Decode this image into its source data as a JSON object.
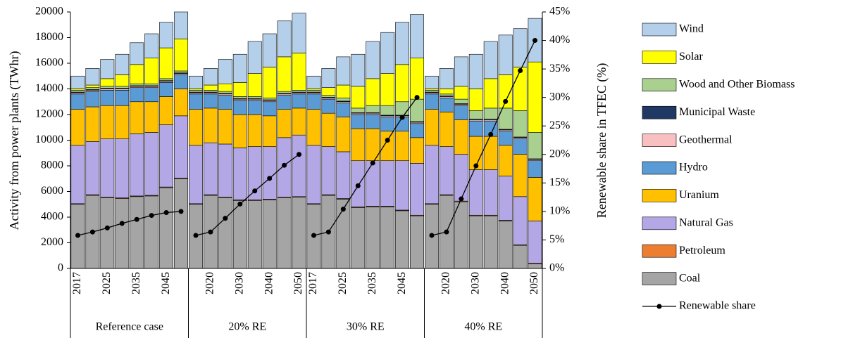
{
  "chart_data": {
    "type": "stacked-bar-line",
    "y_label": "Activity from power plants (TWhr)",
    "y2_label": "Renewable share in TFEC (%)",
    "ylim": [
      0,
      20000
    ],
    "yticks": [
      0,
      2000,
      4000,
      6000,
      8000,
      10000,
      12000,
      14000,
      16000,
      18000,
      20000
    ],
    "y2lim": [
      0,
      45
    ],
    "y2ticks": [
      {
        "value": 0,
        "label": "0%"
      },
      {
        "value": 5,
        "label": "5%"
      },
      {
        "value": 10,
        "label": "10%"
      },
      {
        "value": 15,
        "label": "15%"
      },
      {
        "value": 20,
        "label": "20%"
      },
      {
        "value": 25,
        "label": "25%"
      },
      {
        "value": 30,
        "label": "30%"
      },
      {
        "value": 35,
        "label": "35%"
      },
      {
        "value": 40,
        "label": "40%"
      },
      {
        "value": 45,
        "label": "45%"
      }
    ],
    "groups": [
      "Reference case",
      "20% RE",
      "30% RE",
      "40% RE"
    ],
    "categories": [
      "2017",
      null,
      "2025",
      null,
      "2035",
      null,
      "2045",
      null,
      null,
      "2020",
      null,
      "2030",
      null,
      "2040",
      null,
      "2050",
      "2017",
      null,
      "2025",
      null,
      "2035",
      null,
      "2045",
      null,
      null,
      "2020",
      null,
      "2030",
      null,
      "2040",
      null,
      "2050"
    ],
    "series": [
      {
        "name": "Coal",
        "color": "#a5a5a5",
        "values": [
          5000,
          5700,
          5500,
          5450,
          5600,
          5650,
          6300,
          7000,
          5000,
          5700,
          5500,
          5300,
          5300,
          5350,
          5500,
          5550,
          5000,
          5700,
          5400,
          4750,
          4800,
          4800,
          4500,
          4100,
          5000,
          5700,
          5200,
          4100,
          4100,
          3700,
          1800,
          350
        ]
      },
      {
        "name": "Petroleum",
        "color": "#ed7d31",
        "values": [
          50,
          50,
          50,
          50,
          50,
          50,
          50,
          50,
          50,
          50,
          50,
          50,
          50,
          50,
          50,
          50,
          50,
          50,
          50,
          50,
          50,
          50,
          50,
          50,
          50,
          50,
          50,
          50,
          50,
          50,
          50,
          50
        ]
      },
      {
        "name": "Natural Gas",
        "color": "#b4a7e5",
        "values": [
          4550,
          4150,
          4550,
          4600,
          4850,
          4900,
          4850,
          4850,
          4550,
          4050,
          4150,
          4050,
          4150,
          4100,
          4650,
          4800,
          4550,
          3750,
          3650,
          3600,
          3550,
          3550,
          3850,
          4050,
          4550,
          3750,
          3650,
          3550,
          3550,
          3450,
          3750,
          3300
        ]
      },
      {
        "name": "Uranium",
        "color": "#ffc000",
        "values": [
          2800,
          2700,
          2600,
          2600,
          2500,
          2400,
          2200,
          2100,
          2800,
          2700,
          2700,
          2600,
          2500,
          2400,
          2200,
          2100,
          2800,
          2600,
          2700,
          2500,
          2500,
          2300,
          2300,
          2000,
          2800,
          2700,
          2700,
          2600,
          2600,
          2400,
          3300,
          3400
        ]
      },
      {
        "name": "Hydro",
        "color": "#5b9bd5",
        "values": [
          1200,
          1200,
          1200,
          1200,
          1100,
          1100,
          1100,
          1100,
          1200,
          1100,
          1100,
          1100,
          1100,
          1100,
          1100,
          1100,
          1200,
          1100,
          1100,
          1100,
          1100,
          1100,
          1100,
          1100,
          1200,
          1100,
          1100,
          1200,
          1200,
          1100,
          1200,
          1300
        ]
      },
      {
        "name": "Geothermal",
        "color": "#f8c0c0",
        "values": [
          100,
          100,
          100,
          100,
          100,
          100,
          100,
          100,
          100,
          100,
          100,
          100,
          100,
          100,
          100,
          100,
          100,
          100,
          100,
          100,
          100,
          100,
          100,
          100,
          100,
          100,
          100,
          100,
          100,
          100,
          100,
          100
        ]
      },
      {
        "name": "Municipal Waste",
        "color": "#1f3864",
        "values": [
          50,
          50,
          50,
          50,
          50,
          50,
          50,
          50,
          50,
          50,
          50,
          50,
          50,
          50,
          50,
          50,
          50,
          50,
          50,
          50,
          50,
          50,
          50,
          50,
          50,
          50,
          50,
          50,
          50,
          50,
          50,
          50
        ]
      },
      {
        "name": "Wood and Other Biomass",
        "color": "#a9d08e",
        "values": [
          150,
          150,
          150,
          150,
          150,
          150,
          150,
          150,
          150,
          150,
          150,
          150,
          150,
          150,
          150,
          150,
          150,
          150,
          250,
          350,
          550,
          750,
          1050,
          1750,
          150,
          150,
          350,
          650,
          850,
          1650,
          2050,
          2050
        ]
      },
      {
        "name": "Solar",
        "color": "#ffff00",
        "values": [
          100,
          200,
          600,
          900,
          1500,
          2000,
          2400,
          2500,
          100,
          400,
          600,
          1100,
          1800,
          2400,
          2700,
          2900,
          100,
          600,
          1000,
          1700,
          2100,
          2500,
          2900,
          3200,
          100,
          400,
          1000,
          1700,
          2300,
          2600,
          3400,
          5500
        ]
      },
      {
        "name": "Wind",
        "color": "#b4cfea",
        "values": [
          1000,
          1300,
          1500,
          1600,
          1700,
          1900,
          2000,
          2100,
          1000,
          1300,
          1900,
          2200,
          2500,
          2600,
          2800,
          3100,
          1000,
          1500,
          2200,
          2500,
          2900,
          3200,
          3300,
          3400,
          1000,
          1600,
          2300,
          2700,
          2900,
          3100,
          3000,
          3400
        ]
      },
      {
        "name": "Renewable share",
        "color": "#000000",
        "axis": "y2",
        "values": [
          5.8,
          6.4,
          7.1,
          7.9,
          8.6,
          9.3,
          9.8,
          10.0,
          5.8,
          6.4,
          8.8,
          11.3,
          13.6,
          15.8,
          18.1,
          20.0,
          5.8,
          6.4,
          10.4,
          14.5,
          18.5,
          22.5,
          26.5,
          30.0,
          5.8,
          6.4,
          12.2,
          18.0,
          23.5,
          29.3,
          34.7,
          40.0
        ]
      }
    ]
  }
}
